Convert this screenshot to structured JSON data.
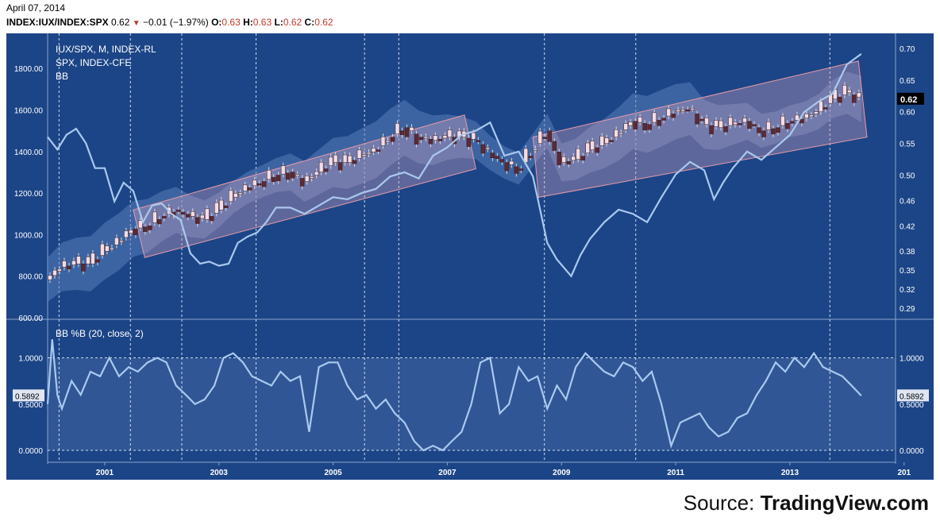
{
  "header": {
    "date": "April 07, 2014",
    "symbol": "INDEX:IUX/INDEX:SPX",
    "last": "0.62",
    "change": "−0.01 (−1.97%)",
    "o_label": "O:",
    "o_val": "0.63",
    "h_label": "H:",
    "h_val": "0.63",
    "l_label": "L:",
    "l_val": "0.62",
    "c_label": "C:",
    "c_val": "0.62"
  },
  "legend": {
    "line1": "IUX/SPX, M, INDEX-RL",
    "line2": "SPX, INDEX-CFE",
    "line3": "BB",
    "indicator": "BB %B (20, close, 2)"
  },
  "source": {
    "prefix": "Source: ",
    "brand": "TradingView.com"
  },
  "colors": {
    "background": "#1c4587",
    "spx_line": "#a9c9ee",
    "bull_candle": "#f3dde4",
    "bear_candle": "#5b2a34",
    "channel_border": "#e79aa8",
    "last_price_bg": "#000000"
  },
  "chart_data": [
    {
      "type": "line",
      "title": "IUX/SPX, M, INDEX-RL",
      "left_axis": {
        "ticks": [
          "600.00",
          "800.00",
          "1000.00",
          "1200.00",
          "1400.00",
          "1600.00",
          "1800.00"
        ]
      },
      "right_axis": {
        "ticks": [
          "0.29",
          "0.32",
          "0.35",
          "0.38",
          "0.42",
          "0.46",
          "0.50",
          "0.55",
          "0.60",
          "0.65",
          "0.70"
        ]
      },
      "last_value_label": "0.62",
      "x_ticks": [
        "2001",
        "2003",
        "2005",
        "2007",
        "2009",
        "2011",
        "2013",
        "201"
      ],
      "xlim": [
        2000.0,
        2014.85
      ],
      "series": [
        {
          "name": "SPX",
          "axis": "left",
          "x": [
            2000.0,
            2000.17,
            2000.33,
            2000.5,
            2000.67,
            2000.83,
            2001.0,
            2001.17,
            2001.33,
            2001.5,
            2001.67,
            2001.83,
            2002.0,
            2002.17,
            2002.33,
            2002.5,
            2002.67,
            2002.83,
            2003.0,
            2003.17,
            2003.33,
            2003.5,
            2003.67,
            2003.83,
            2004.0,
            2004.25,
            2004.5,
            2004.75,
            2005.0,
            2005.25,
            2005.5,
            2005.75,
            2006.0,
            2006.25,
            2006.5,
            2006.75,
            2007.0,
            2007.25,
            2007.5,
            2007.75,
            2008.0,
            2008.25,
            2008.5,
            2008.75,
            2008.92,
            2009.17,
            2009.33,
            2009.5,
            2009.75,
            2010.0,
            2010.25,
            2010.5,
            2010.75,
            2011.0,
            2011.25,
            2011.5,
            2011.67,
            2011.83,
            2012.0,
            2012.25,
            2012.5,
            2012.75,
            2013.0,
            2013.25,
            2013.5,
            2013.75,
            2014.0,
            2014.25
          ],
          "values": [
            1470,
            1410,
            1480,
            1510,
            1440,
            1320,
            1320,
            1160,
            1250,
            1210,
            1060,
            1140,
            1150,
            1100,
            1070,
            910,
            860,
            870,
            850,
            860,
            960,
            990,
            1010,
            1060,
            1130,
            1130,
            1100,
            1140,
            1180,
            1170,
            1200,
            1220,
            1280,
            1300,
            1270,
            1380,
            1420,
            1480,
            1500,
            1540,
            1380,
            1400,
            1280,
            960,
            880,
            800,
            900,
            980,
            1060,
            1120,
            1100,
            1060,
            1180,
            1290,
            1350,
            1310,
            1170,
            1250,
            1320,
            1400,
            1360,
            1420,
            1480,
            1590,
            1640,
            1680,
            1820,
            1870
          ]
        },
        {
          "name": "IUX/SPX",
          "axis": "right",
          "ohlc_summary": {
            "channel_segments": [
              [
                2001.5,
                2007.3
              ],
              [
                2008.5,
                2014.2
              ]
            ],
            "last_close": 0.62
          },
          "x": [
            2000.0,
            2000.25,
            2000.5,
            2000.75,
            2001.0,
            2001.25,
            2001.5,
            2001.75,
            2002.0,
            2002.25,
            2002.5,
            2002.75,
            2003.0,
            2003.25,
            2003.5,
            2003.75,
            2004.0,
            2004.25,
            2004.5,
            2004.75,
            2005.0,
            2005.25,
            2005.5,
            2005.75,
            2006.0,
            2006.25,
            2006.5,
            2006.75,
            2007.0,
            2007.25,
            2007.5,
            2007.75,
            2008.0,
            2008.25,
            2008.5,
            2008.75,
            2009.0,
            2009.25,
            2009.5,
            2009.75,
            2010.0,
            2010.25,
            2010.5,
            2010.75,
            2011.0,
            2011.25,
            2011.5,
            2011.75,
            2012.0,
            2012.25,
            2012.5,
            2012.75,
            2013.0,
            2013.25,
            2013.5,
            2013.75,
            2014.0,
            2014.25
          ],
          "values": [
            0.335,
            0.355,
            0.36,
            0.36,
            0.38,
            0.395,
            0.415,
            0.42,
            0.435,
            0.445,
            0.435,
            0.43,
            0.445,
            0.465,
            0.48,
            0.49,
            0.5,
            0.505,
            0.49,
            0.505,
            0.52,
            0.52,
            0.53,
            0.54,
            0.56,
            0.575,
            0.56,
            0.555,
            0.56,
            0.56,
            0.555,
            0.535,
            0.52,
            0.51,
            0.54,
            0.57,
            0.52,
            0.525,
            0.54,
            0.55,
            0.565,
            0.585,
            0.58,
            0.59,
            0.6,
            0.605,
            0.58,
            0.575,
            0.58,
            0.585,
            0.57,
            0.575,
            0.585,
            0.59,
            0.6,
            0.62,
            0.63,
            0.62
          ]
        }
      ]
    },
    {
      "type": "line",
      "title": "BB %B (20, close, 2)",
      "y_ticks": [
        "0.0000",
        "0.5000",
        "1.0000"
      ],
      "ylim": [
        -0.1,
        1.3
      ],
      "last_value_label": "0.5892",
      "series": [
        {
          "name": "BB %B",
          "x": [
            2000.0,
            2000.08,
            2000.17,
            2000.25,
            2000.42,
            2000.58,
            2000.75,
            2000.92,
            2001.08,
            2001.25,
            2001.42,
            2001.58,
            2001.75,
            2001.92,
            2002.08,
            2002.25,
            2002.42,
            2002.58,
            2002.75,
            2002.92,
            2003.08,
            2003.25,
            2003.42,
            2003.58,
            2003.75,
            2003.92,
            2004.08,
            2004.25,
            2004.42,
            2004.58,
            2004.75,
            2004.92,
            2005.08,
            2005.25,
            2005.42,
            2005.58,
            2005.75,
            2005.92,
            2006.08,
            2006.25,
            2006.42,
            2006.58,
            2006.75,
            2006.92,
            2007.08,
            2007.25,
            2007.42,
            2007.58,
            2007.75,
            2007.92,
            2008.08,
            2008.25,
            2008.42,
            2008.58,
            2008.75,
            2008.92,
            2009.08,
            2009.25,
            2009.42,
            2009.58,
            2009.75,
            2009.92,
            2010.08,
            2010.25,
            2010.42,
            2010.58,
            2010.75,
            2010.92,
            2011.08,
            2011.25,
            2011.42,
            2011.58,
            2011.75,
            2011.92,
            2012.08,
            2012.25,
            2012.42,
            2012.58,
            2012.75,
            2012.92,
            2013.08,
            2013.25,
            2013.42,
            2013.58,
            2013.75,
            2013.92,
            2014.08,
            2014.25
          ],
          "values": [
            0.5,
            1.2,
            0.6,
            0.45,
            0.75,
            0.6,
            0.85,
            0.8,
            1.0,
            0.8,
            0.9,
            0.85,
            0.95,
            1.0,
            0.95,
            0.7,
            0.6,
            0.5,
            0.55,
            0.7,
            1.0,
            1.05,
            0.95,
            0.8,
            0.75,
            0.7,
            0.85,
            0.75,
            0.8,
            0.2,
            0.9,
            0.95,
            0.95,
            0.7,
            0.55,
            0.6,
            0.45,
            0.55,
            0.4,
            0.3,
            0.1,
            0.0,
            0.05,
            0.0,
            0.1,
            0.2,
            0.5,
            0.95,
            1.0,
            0.4,
            0.5,
            0.9,
            0.75,
            0.8,
            0.45,
            0.7,
            0.55,
            0.9,
            1.05,
            0.95,
            0.85,
            0.8,
            0.95,
            0.9,
            0.75,
            0.85,
            0.5,
            0.05,
            0.3,
            0.35,
            0.4,
            0.25,
            0.15,
            0.2,
            0.35,
            0.4,
            0.6,
            0.75,
            0.95,
            0.85,
            1.0,
            0.9,
            1.05,
            0.9,
            0.85,
            0.8,
            0.7,
            0.59
          ]
        }
      ]
    }
  ]
}
